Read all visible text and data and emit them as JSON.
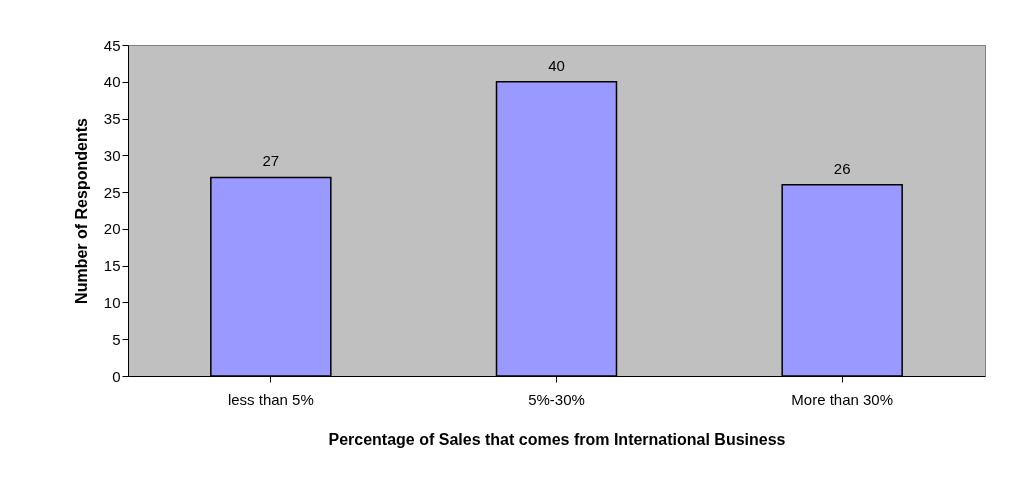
{
  "chart_data": {
    "type": "bar",
    "xlabel": "Percentage of Sales that comes from International Business",
    "ylabel": "Number of Respondents",
    "categories": [
      "less than 5%",
      "5%-30%",
      "More than 30%"
    ],
    "values": [
      27,
      40,
      26
    ],
    "color": "#9999ff",
    "ylim": [
      0,
      45
    ],
    "yticks": [
      0,
      5,
      10,
      15,
      20,
      25,
      30,
      35,
      40,
      45
    ],
    "grid": false,
    "data_labels": true
  }
}
